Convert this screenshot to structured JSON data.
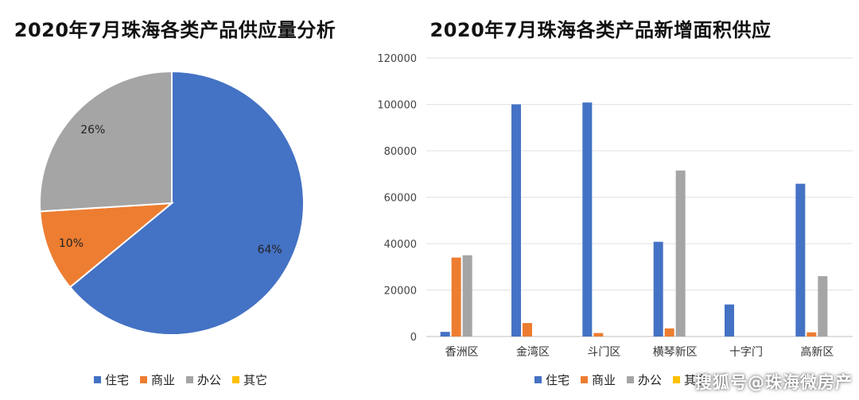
{
  "watermark": "搜狐号@珠海微房产",
  "colors": {
    "住宅": "#4472C4",
    "商业": "#ED7D31",
    "办公": "#A5A5A5",
    "其它": "#FFC000"
  },
  "chart_data": [
    {
      "type": "pie",
      "title": "2020年7月珠海各类产品供应量分析",
      "slices": [
        {
          "name": "住宅",
          "value": 64,
          "label": "64%"
        },
        {
          "name": "商业",
          "value": 10,
          "label": "10%"
        },
        {
          "name": "办公",
          "value": 26,
          "label": "26%"
        },
        {
          "name": "其它",
          "value": 0,
          "label": ""
        }
      ],
      "legend": [
        "住宅",
        "商业",
        "办公",
        "其它"
      ],
      "legend_position": "bottom"
    },
    {
      "type": "bar",
      "title": "2020年7月珠海各类产品新增面积供应",
      "categories": [
        "香洲区",
        "金湾区",
        "斗门区",
        "横琴新区",
        "十字门",
        "高新区"
      ],
      "series": [
        {
          "name": "住宅",
          "values": [
            2000,
            100000,
            100800,
            40800,
            13800,
            65800
          ]
        },
        {
          "name": "商业",
          "values": [
            34000,
            5800,
            1500,
            3500,
            0,
            1800
          ]
        },
        {
          "name": "办公",
          "values": [
            35000,
            0,
            0,
            71500,
            0,
            26000
          ]
        },
        {
          "name": "其它",
          "values": [
            0,
            0,
            0,
            0,
            0,
            0
          ]
        }
      ],
      "ylim": [
        0,
        120000
      ],
      "yticks": [
        0,
        20000,
        40000,
        60000,
        80000,
        100000,
        120000
      ],
      "grid": true,
      "legend": [
        "住宅",
        "商业",
        "办公",
        "其它"
      ],
      "legend_position": "bottom"
    }
  ]
}
